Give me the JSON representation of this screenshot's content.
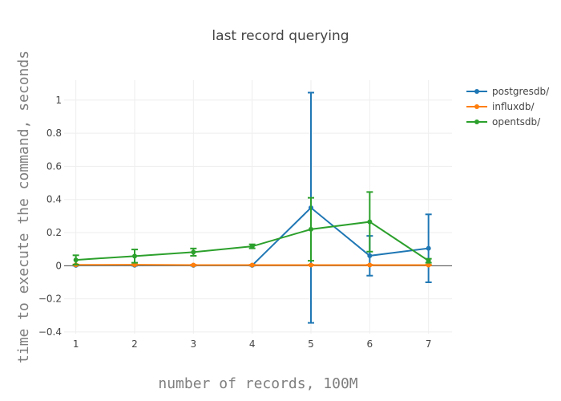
{
  "chart_data": {
    "type": "line",
    "title": "last record querying",
    "xlabel": "number of records, 100M",
    "ylabel": "time to execute the command, seconds",
    "x": [
      1,
      2,
      3,
      4,
      5,
      6,
      7
    ],
    "xlim": [
      0.8,
      7.4
    ],
    "ylim": [
      -0.41,
      1.12
    ],
    "x_ticks": [
      1,
      2,
      3,
      4,
      5,
      6,
      7
    ],
    "y_ticks": [
      -0.4,
      -0.2,
      0,
      0.2,
      0.4,
      0.6,
      0.8,
      1
    ],
    "grid": true,
    "legend_position": "top-right",
    "series": [
      {
        "name": "postgresdb/",
        "color": "#1f77b4",
        "values": [
          0.002,
          0.003,
          0.002,
          0.002,
          0.35,
          0.06,
          0.105
        ],
        "error": [
          0.002,
          0.003,
          0.002,
          0.002,
          0.695,
          0.12,
          0.205
        ]
      },
      {
        "name": "influxdb/",
        "color": "#ff7f0e",
        "values": [
          0.005,
          0.006,
          0.004,
          0.004,
          0.004,
          0.004,
          0.004
        ],
        "error": [
          0.002,
          0.002,
          0.002,
          0.002,
          0.002,
          0.002,
          0.002
        ]
      },
      {
        "name": "opentsdb/",
        "color": "#2ca02c",
        "values": [
          0.035,
          0.058,
          0.082,
          0.117,
          0.22,
          0.265,
          0.03
        ],
        "error": [
          0.028,
          0.04,
          0.022,
          0.012,
          0.19,
          0.18,
          0.012
        ]
      }
    ]
  }
}
